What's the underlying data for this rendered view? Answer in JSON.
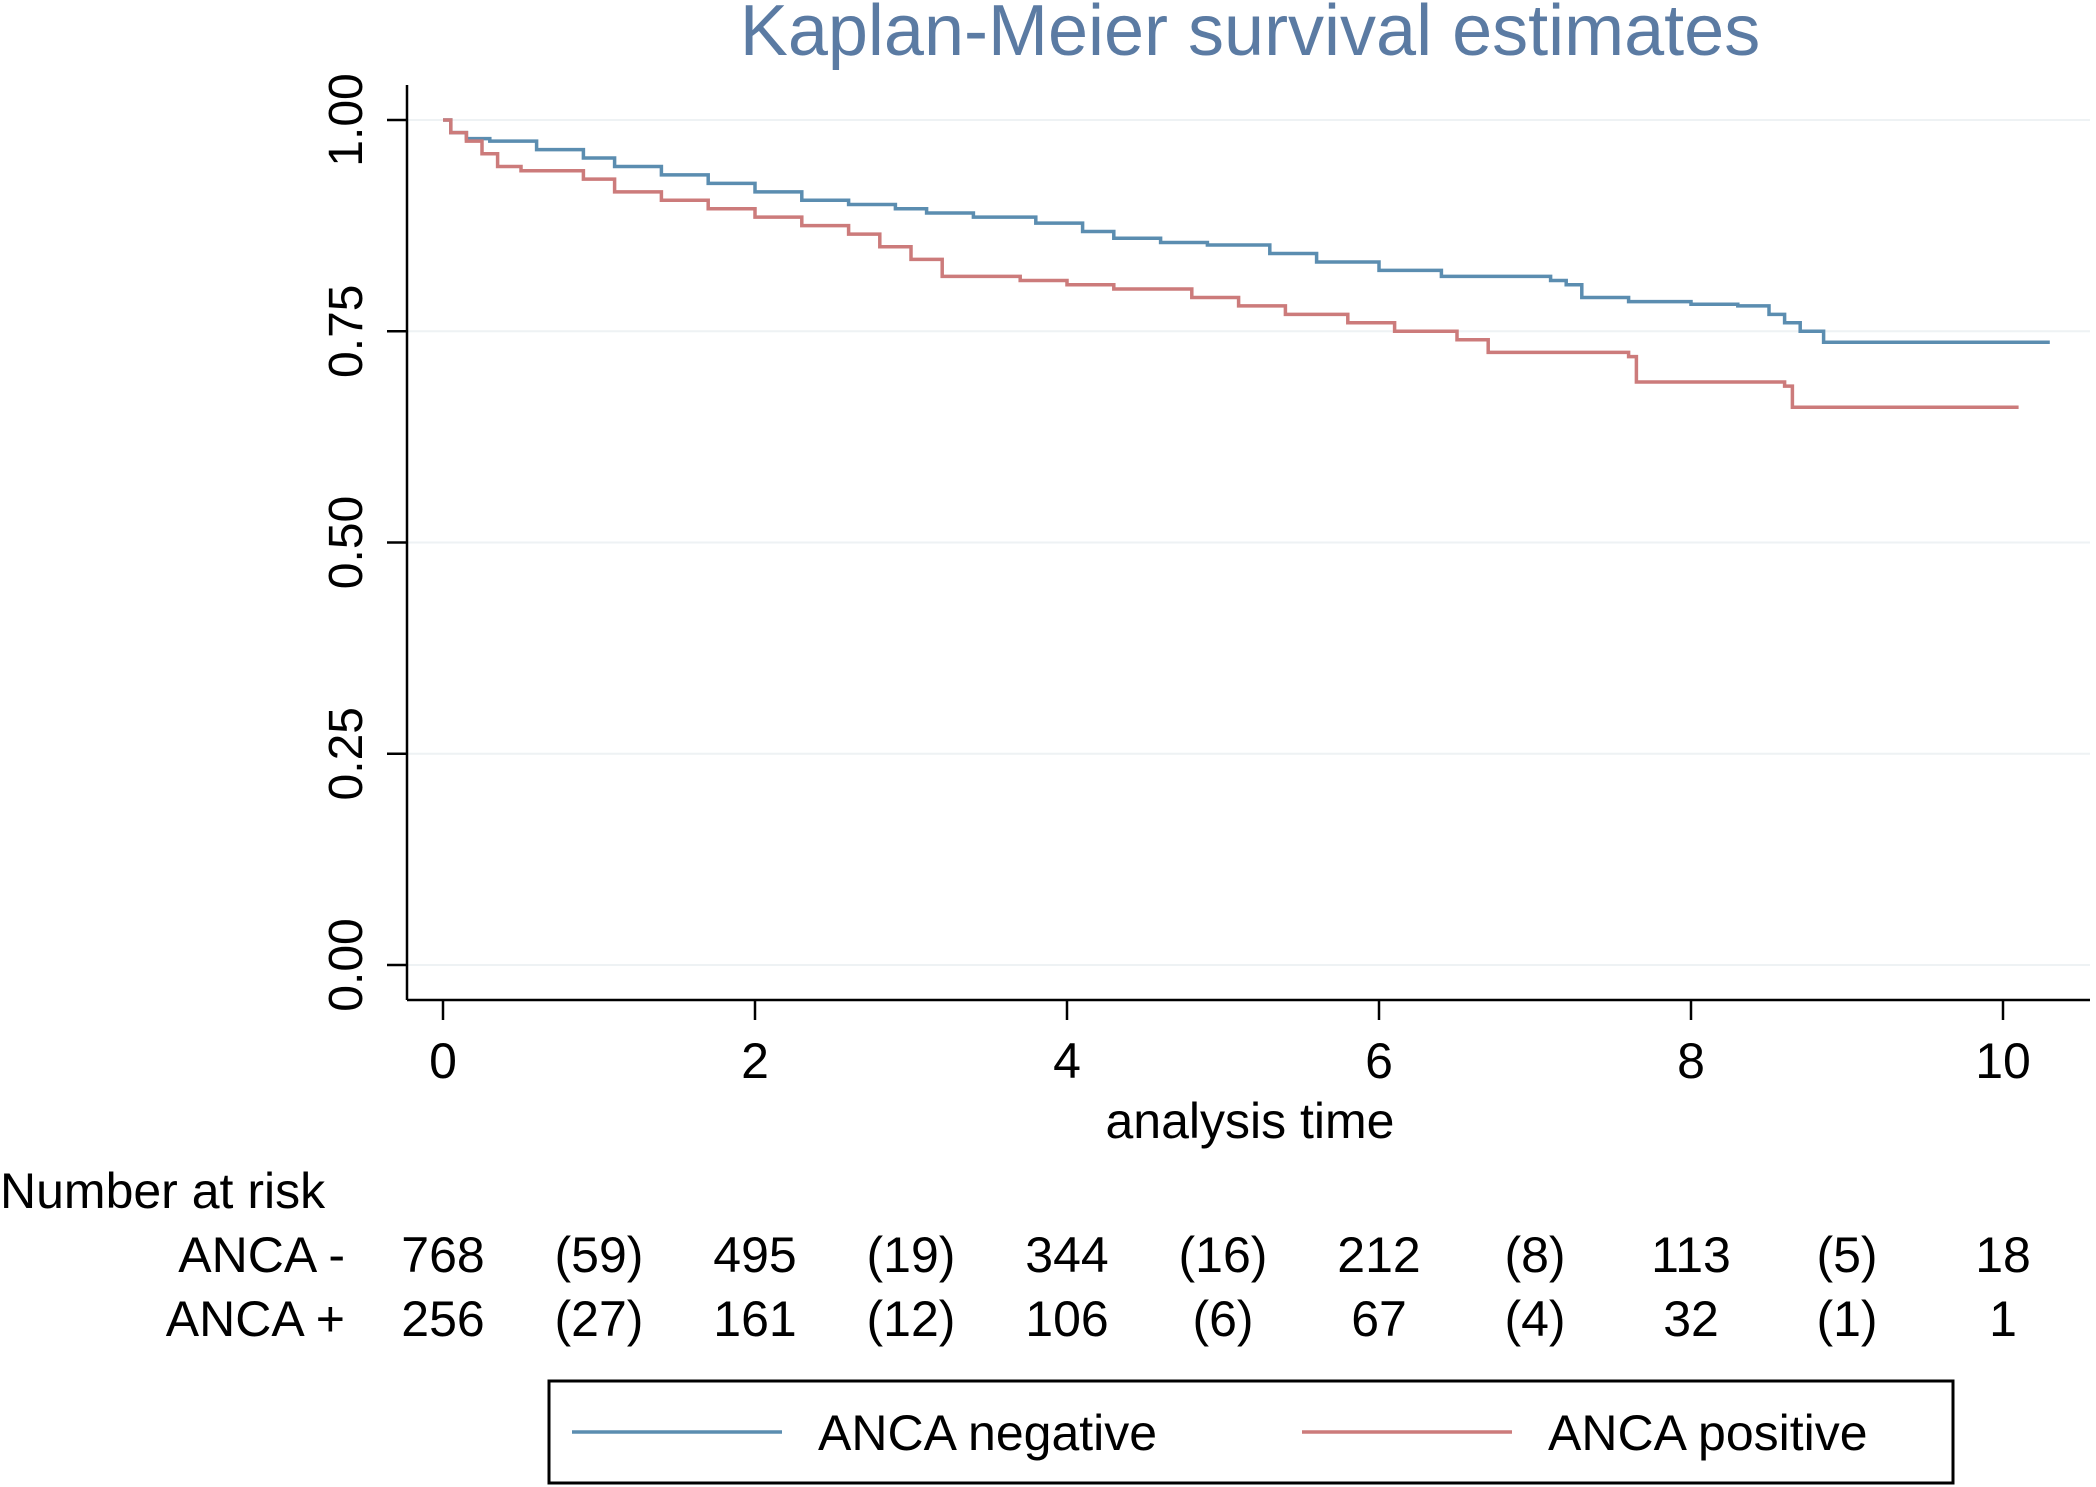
{
  "chart_data": {
    "type": "line",
    "title": "Kaplan-Meier survival estimates",
    "xlabel": "analysis time",
    "ylabel": "",
    "xlim": [
      -0.3,
      10.7
    ],
    "ylim": [
      -0.05,
      1.05
    ],
    "x_ticks": [
      "0",
      "2",
      "4",
      "6",
      "8",
      "10"
    ],
    "x_tick_values": [
      0,
      2,
      4,
      6,
      8,
      10
    ],
    "y_ticks": [
      "0.00",
      "0.25",
      "0.50",
      "0.75",
      "1.00"
    ],
    "y_tick_values": [
      0,
      0.25,
      0.5,
      0.75,
      1.0
    ],
    "grid": true,
    "series": [
      {
        "name": "ANCA negative",
        "color": "#5b8db0",
        "step": true,
        "x": [
          0,
          0.05,
          0.15,
          0.3,
          0.6,
          0.9,
          1.1,
          1.4,
          1.7,
          2.0,
          2.3,
          2.6,
          2.9,
          3.1,
          3.4,
          3.8,
          4.1,
          4.3,
          4.6,
          4.9,
          5.3,
          5.6,
          6.0,
          6.4,
          6.9,
          7.1,
          7.2,
          7.3,
          7.6,
          8.0,
          8.3,
          8.5,
          8.6,
          8.7,
          8.85,
          10.3
        ],
        "y": [
          1.0,
          0.985,
          0.978,
          0.975,
          0.965,
          0.955,
          0.945,
          0.935,
          0.925,
          0.915,
          0.905,
          0.9,
          0.895,
          0.89,
          0.885,
          0.878,
          0.868,
          0.86,
          0.855,
          0.852,
          0.842,
          0.832,
          0.822,
          0.815,
          0.815,
          0.81,
          0.805,
          0.79,
          0.785,
          0.782,
          0.78,
          0.77,
          0.76,
          0.75,
          0.737,
          0.737
        ]
      },
      {
        "name": "ANCA positive",
        "color": "#cc7b7b",
        "step": true,
        "x": [
          0,
          0.05,
          0.15,
          0.25,
          0.35,
          0.5,
          0.9,
          1.1,
          1.4,
          1.7,
          2.0,
          2.3,
          2.6,
          2.8,
          3.0,
          3.2,
          3.7,
          4.0,
          4.3,
          4.8,
          5.1,
          5.4,
          5.8,
          6.1,
          6.5,
          6.7,
          7.6,
          7.65,
          8.6,
          8.65,
          10.1
        ],
        "y": [
          1.0,
          0.985,
          0.975,
          0.96,
          0.945,
          0.94,
          0.93,
          0.915,
          0.905,
          0.895,
          0.885,
          0.875,
          0.865,
          0.85,
          0.835,
          0.815,
          0.81,
          0.805,
          0.8,
          0.79,
          0.78,
          0.77,
          0.76,
          0.75,
          0.74,
          0.725,
          0.72,
          0.69,
          0.685,
          0.66,
          0.66
        ]
      }
    ],
    "risk_table": {
      "header": "Number at risk",
      "rows": [
        {
          "label": "ANCA -",
          "values": [
            "768",
            "(59)",
            "495",
            "(19)",
            "344",
            "(16)",
            "212",
            "(8)",
            "113",
            "(5)",
            "18"
          ]
        },
        {
          "label": "ANCA +",
          "values": [
            "256",
            "(27)",
            "161",
            "(12)",
            "106",
            "(6)",
            "67",
            "(4)",
            "32",
            "(1)",
            "1"
          ]
        }
      ],
      "positions": [
        0,
        1,
        2,
        3,
        4,
        5,
        6,
        7,
        8,
        9,
        10
      ]
    },
    "legend": {
      "placement": "bottom-center",
      "entries": [
        "ANCA negative",
        "ANCA positive"
      ]
    }
  }
}
